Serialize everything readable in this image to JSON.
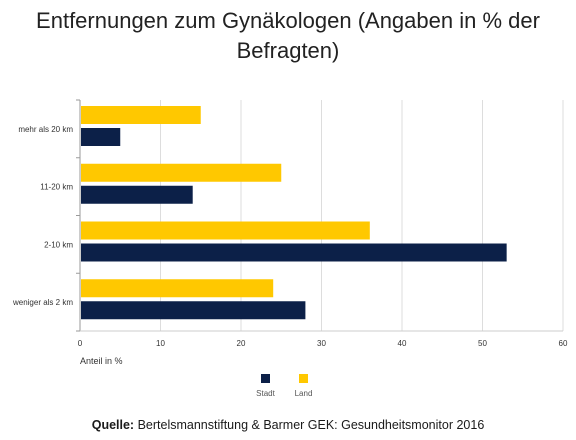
{
  "chart_data": {
    "type": "bar",
    "orientation": "horizontal",
    "title": "Entfernungen zum Gynäkologen (Angaben in % der Befragten)",
    "categories": [
      "mehr als 20 km",
      "11-20 km",
      "2-10 km",
      "weniger als 2 km"
    ],
    "series": [
      {
        "name": "Land",
        "color": "#ffc800",
        "values": [
          15,
          25,
          36,
          24
        ]
      },
      {
        "name": "Stadt",
        "color": "#0c2048",
        "values": [
          5,
          14,
          53,
          28
        ]
      }
    ],
    "xlabel": "Anteil in %",
    "xlim": [
      0,
      60
    ],
    "xticks": [
      0,
      10,
      20,
      30,
      40,
      50,
      60
    ],
    "grid": true,
    "legend": "bottom-center"
  },
  "legend_order": [
    "Stadt",
    "Land"
  ],
  "source": {
    "label": "Quelle:",
    "text": " Bertelsmannstiftung & Barmer GEK: Gesundheitsmonitor 2016"
  }
}
